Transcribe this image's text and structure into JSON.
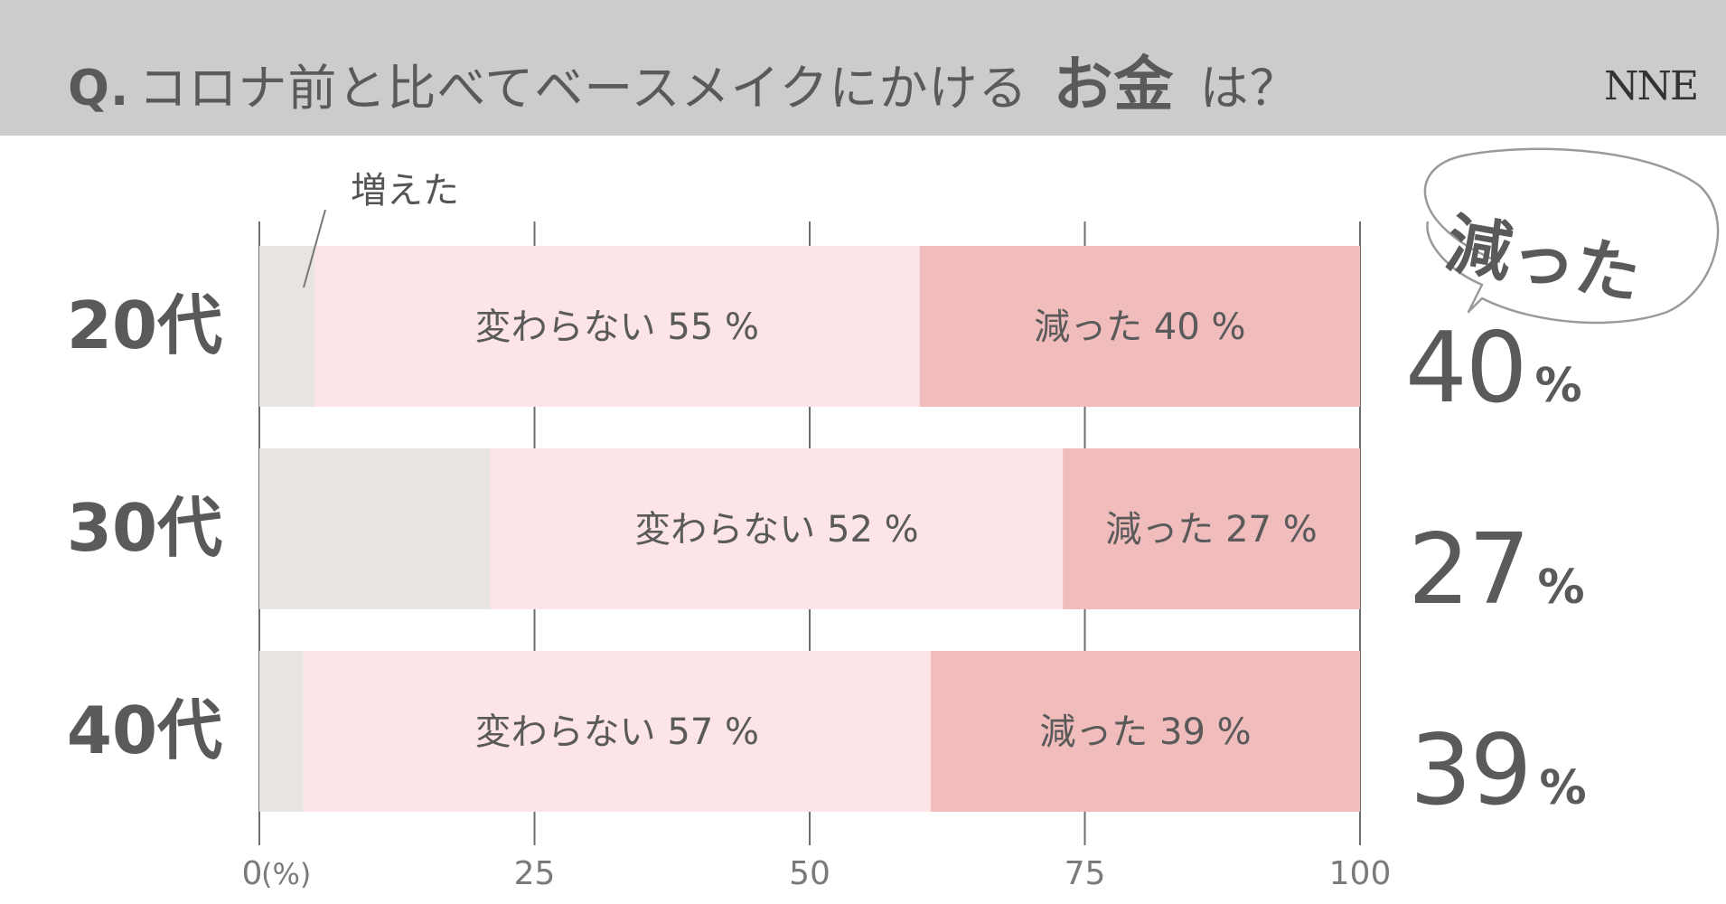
{
  "header": {
    "q_label": "Q.",
    "question_before": "コロナ前と比べてベースメイクにかける",
    "question_emphasis": "お金",
    "question_after": "は？",
    "logo_text": "NNE"
  },
  "colors": {
    "header_bg": "#cccccc",
    "increased": "#e8e4df",
    "unchanged": "#fde4e6",
    "decreased": "#f0bcbc",
    "text": "#5a5a5a"
  },
  "annotation": {
    "increased_label": "増えた"
  },
  "callout": {
    "label": "減った"
  },
  "chart_data": {
    "type": "bar",
    "orientation": "horizontal",
    "stacked": true,
    "categories": [
      "20代",
      "30代",
      "40代"
    ],
    "series": [
      {
        "name": "増えた",
        "values": [
          5,
          21,
          4
        ]
      },
      {
        "name": "変わらない",
        "values": [
          55,
          52,
          57
        ]
      },
      {
        "name": "減った",
        "values": [
          40,
          27,
          39
        ]
      }
    ],
    "segment_labels": {
      "変わらない": [
        "変わらない 55 %",
        "変わらない 52 %",
        "変わらない 57 %"
      ],
      "減った": [
        "減った 40 %",
        "減った 27 %",
        "減った 39 %"
      ]
    },
    "highlight_values": [
      {
        "num": "40",
        "unit": "%"
      },
      {
        "num": "27",
        "unit": "%"
      },
      {
        "num": "39",
        "unit": "%"
      }
    ],
    "xlim": [
      0,
      100
    ],
    "xticks": [
      "0",
      "25",
      "50",
      "75",
      "100"
    ],
    "xunit": "(%)",
    "grid": true
  }
}
